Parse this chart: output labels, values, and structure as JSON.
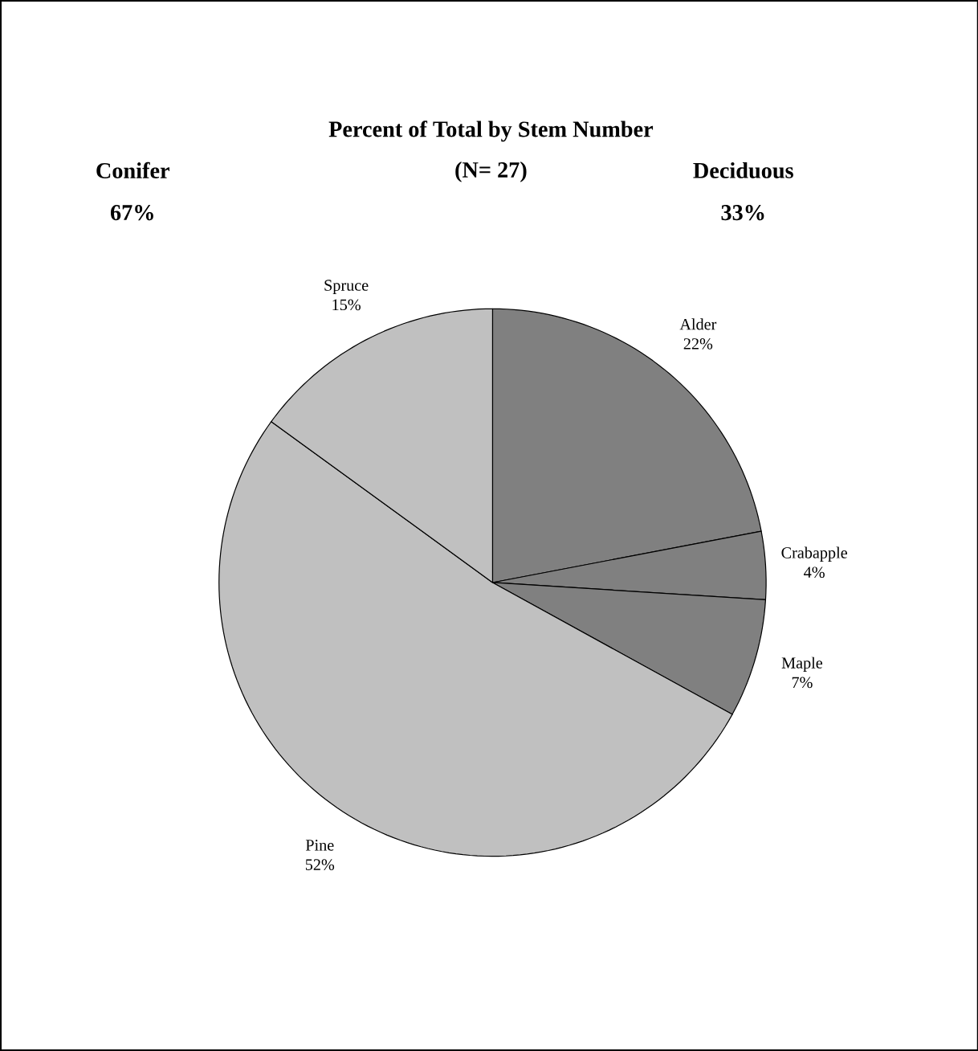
{
  "chart_data": {
    "type": "pie",
    "title": "Percent of Total by Stem Number",
    "subtitle": "(N= 27)",
    "categories": [
      "Alder",
      "Crabapple",
      "Maple",
      "Pine",
      "Spruce"
    ],
    "values": [
      22,
      4,
      7,
      52,
      15
    ],
    "value_labels": [
      "22%",
      "4%",
      "7%",
      "52%",
      "15%"
    ],
    "colors": [
      "#808080",
      "#808080",
      "#808080",
      "#c0c0c0",
      "#c0c0c0"
    ],
    "annotations": [
      "Conifer",
      "67%",
      "Deciduous",
      "33%"
    ]
  }
}
